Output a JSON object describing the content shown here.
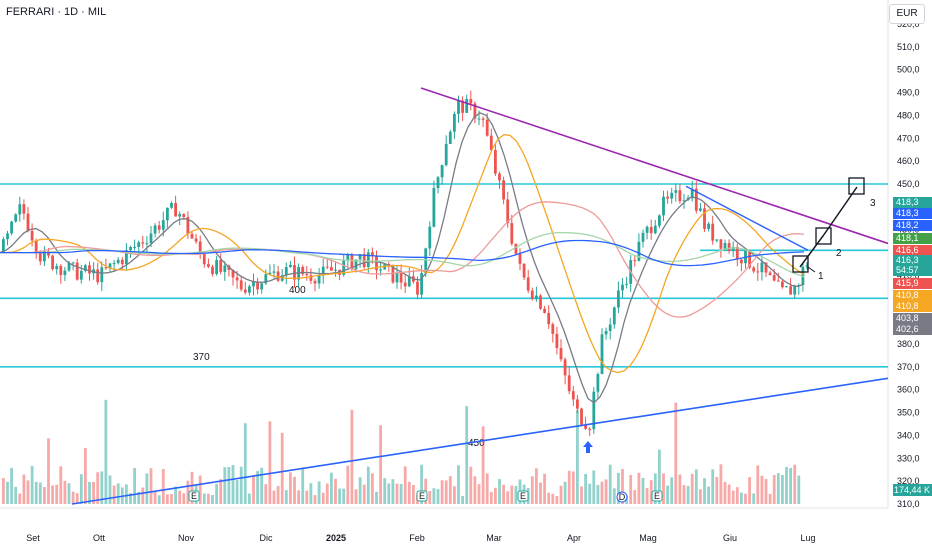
{
  "header": {
    "title": "FERRARI · 1D · MIL"
  },
  "currency": "EUR",
  "colors": {
    "up": "#26a69a",
    "down": "#ef5350",
    "level": "#26c6da",
    "trendline_purple": "#9c27b0",
    "trendline_blue": "#2962ff",
    "ma_gray": "#787b86",
    "ma_orange": "#f5a623",
    "ma_blue": "#2962ff"
  },
  "chart_data": {
    "type": "candlestick",
    "x_ticks": [
      "Set",
      "Ott",
      "Nov",
      "Dic",
      "2025",
      "Feb",
      "Mar",
      "Apr",
      "Mag",
      "Giu",
      "Lug"
    ],
    "y_ticks": [
      "310,0",
      "320,0",
      "330,0",
      "340,0",
      "350,0",
      "360,0",
      "370,0",
      "380,0",
      "390,0",
      "400,0",
      "410,0",
      "420,0",
      "430,0",
      "440,0",
      "450,0",
      "460,0",
      "470,0",
      "480,0",
      "490,0",
      "500,0",
      "510,0",
      "520,0"
    ],
    "ylim": [
      310,
      522
    ],
    "horizontal_levels": [
      450,
      421,
      400,
      370
    ],
    "level_labels": [
      "450",
      "400",
      "370"
    ],
    "wave_labels": [
      "1",
      "2",
      "3"
    ],
    "price_tags": [
      {
        "text": "418,3",
        "color": "#26a69a"
      },
      {
        "text": "418,3",
        "color": "#2962ff"
      },
      {
        "text": "418,2",
        "color": "#2962ff"
      },
      {
        "text": "418,1",
        "color": "#43a047"
      },
      {
        "text": "416,6",
        "color": "#ef5350"
      },
      {
        "text": "416,3",
        "color": "#26a69a"
      },
      {
        "text": "54:57",
        "color": "#26a69a"
      },
      {
        "text": "415,9",
        "color": "#ef5350"
      },
      {
        "text": "410,8",
        "color": "#f5a623"
      },
      {
        "text": "410,8",
        "color": "#f5a623"
      },
      {
        "text": "403,8",
        "color": "#787b86"
      },
      {
        "text": "402,6",
        "color": "#787b86"
      }
    ],
    "volume_label": "174,44 K",
    "event_markers": [
      "E",
      "E",
      "E",
      "D",
      "E"
    ],
    "series": [
      {
        "x": "Set",
        "close": 420
      },
      {
        "x": "Ott",
        "close": 423
      },
      {
        "x": "Nov",
        "close": 430
      },
      {
        "x": "Dic",
        "close": 412
      },
      {
        "x": "2025",
        "close": 410
      },
      {
        "x": "Feb",
        "close": 440
      },
      {
        "x": "Feb-mid",
        "close": 484
      },
      {
        "x": "Mar",
        "close": 420
      },
      {
        "x": "Apr",
        "close": 350
      },
      {
        "x": "Apr-end",
        "close": 395
      },
      {
        "x": "Mag",
        "close": 447
      },
      {
        "x": "Giu",
        "close": 415
      },
      {
        "x": "Lug",
        "close": 416
      }
    ]
  }
}
